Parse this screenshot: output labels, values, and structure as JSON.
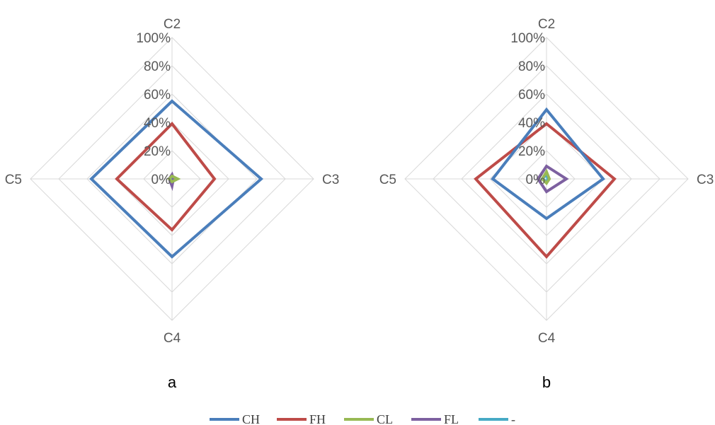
{
  "legend": [
    {
      "name": "CH",
      "color": "#4a7ebb"
    },
    {
      "name": "FH",
      "color": "#be4b48"
    },
    {
      "name": "CL",
      "color": "#98b954"
    },
    {
      "name": "FL",
      "color": "#7d60a0"
    },
    {
      "name": "-",
      "color": "#46aac5"
    }
  ],
  "chart_data": [
    {
      "type": "radar",
      "panel_label": "a",
      "categories": [
        "C2",
        "C3",
        "C4",
        "C5"
      ],
      "radial_ticks": [
        "0%",
        "20%",
        "40%",
        "60%",
        "80%",
        "100%"
      ],
      "rlim": [
        0,
        100
      ],
      "grid": true,
      "legend_position": "bottom",
      "series": [
        {
          "name": "CH",
          "values": [
            55,
            63,
            55,
            57
          ]
        },
        {
          "name": "FH",
          "values": [
            39,
            30,
            36,
            39
          ]
        },
        {
          "name": "CL",
          "values": [
            2,
            4,
            2,
            2
          ]
        },
        {
          "name": "FL",
          "values": [
            3,
            1,
            5,
            2
          ]
        },
        {
          "name": "-",
          "values": [
            1,
            2,
            3,
            1
          ]
        }
      ]
    },
    {
      "type": "radar",
      "panel_label": "b",
      "categories": [
        "C2",
        "C3",
        "C4",
        "C5"
      ],
      "radial_ticks": [
        "0%",
        "20%",
        "40%",
        "60%",
        "80%",
        "100%"
      ],
      "rlim": [
        0,
        100
      ],
      "grid": true,
      "legend_position": "bottom",
      "series": [
        {
          "name": "CH",
          "values": [
            49,
            40,
            28,
            38
          ]
        },
        {
          "name": "FH",
          "values": [
            39,
            48,
            55,
            50
          ]
        },
        {
          "name": "CL",
          "values": [
            5,
            2,
            3,
            3
          ]
        },
        {
          "name": "FL",
          "values": [
            9,
            14,
            9,
            6
          ]
        },
        {
          "name": "-",
          "values": [
            3,
            1,
            2,
            3
          ]
        }
      ]
    }
  ]
}
